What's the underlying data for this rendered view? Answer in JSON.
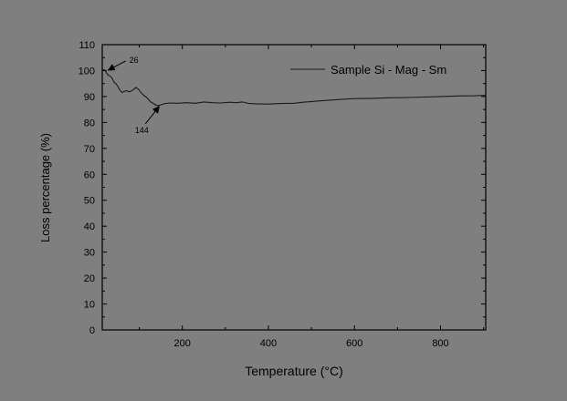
{
  "chart_data": {
    "type": "line",
    "title": "",
    "xlabel": "Temperature (°C)",
    "ylabel": "Loss percentage (%)",
    "xlim": [
      14,
      905
    ],
    "ylim": [
      0,
      110
    ],
    "x_ticks": [
      200,
      400,
      600,
      800
    ],
    "y_ticks": [
      0,
      10,
      20,
      30,
      40,
      50,
      60,
      70,
      80,
      90,
      100,
      110
    ],
    "grid": false,
    "legend_position": "top-right",
    "series": [
      {
        "name": "Sample Si - Mag - Sm",
        "color": "#1a1a1a",
        "x": [
          14,
          20,
          26,
          35,
          42,
          48,
          55,
          60,
          65,
          70,
          78,
          85,
          92,
          98,
          104,
          110,
          118,
          126,
          134,
          140,
          144,
          150,
          160,
          175,
          190,
          210,
          230,
          250,
          270,
          290,
          310,
          325,
          340,
          355,
          370,
          400,
          430,
          460,
          480,
          520,
          560,
          600,
          640,
          680,
          720,
          760,
          800,
          840,
          880,
          905
        ],
        "y": [
          100.5,
          100.2,
          98.5,
          97.5,
          95.5,
          94.5,
          92.5,
          91.5,
          92.0,
          92.2,
          91.8,
          92.5,
          93.5,
          92.8,
          91.5,
          90.5,
          89.5,
          88.0,
          87.2,
          86.6,
          86.5,
          86.8,
          87.3,
          87.5,
          87.4,
          87.6,
          87.4,
          87.9,
          87.6,
          87.5,
          87.8,
          87.6,
          87.9,
          87.3,
          87.2,
          87.1,
          87.3,
          87.4,
          87.8,
          88.3,
          88.8,
          89.2,
          89.3,
          89.5,
          89.6,
          89.8,
          90.0,
          90.2,
          90.3,
          90.5
        ]
      }
    ],
    "annotations": [
      {
        "label": "26",
        "x": 26,
        "y": 100.2
      },
      {
        "label": "144",
        "x": 144,
        "y": 86.5
      }
    ]
  }
}
